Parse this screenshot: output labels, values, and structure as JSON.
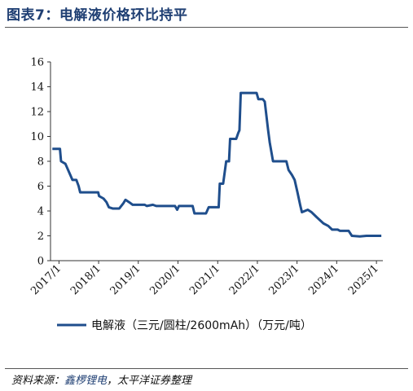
{
  "header": {
    "title": "图表7：电解液价格环比持平"
  },
  "footer": {
    "source_prefix": "资料来源：",
    "source_highlight": "鑫椤锂电",
    "source_rest": "，太平洋证券整理"
  },
  "colors": {
    "line": "#1f4e8c",
    "title": "#1f3f73"
  },
  "chart_data": {
    "type": "line",
    "title": "",
    "xlabel": "",
    "ylabel": "",
    "ylim": [
      0,
      16
    ],
    "yticks": [
      "0",
      "2",
      "4",
      "6",
      "8",
      "10",
      "12",
      "14",
      "16"
    ],
    "xlim": [
      "2016-10-15",
      "2025-03-01"
    ],
    "xticks": [
      {
        "label": "2017/1",
        "date": "2017-01-01"
      },
      {
        "label": "2018/1",
        "date": "2018-01-01"
      },
      {
        "label": "2019/1",
        "date": "2019-01-01"
      },
      {
        "label": "2020/1",
        "date": "2020-01-01"
      },
      {
        "label": "2021/1",
        "date": "2021-01-01"
      },
      {
        "label": "2022/1",
        "date": "2022-01-01"
      },
      {
        "label": "2023/1",
        "date": "2023-01-01"
      },
      {
        "label": "2024/1",
        "date": "2024-01-01"
      },
      {
        "label": "2025/1",
        "date": "2025-01-01"
      }
    ],
    "grid": false,
    "legend_position": "bottom",
    "series": [
      {
        "name": "电解液（三元/圆柱/2600mAh）（万元/吨）",
        "points": [
          [
            "2016-11-01",
            9.0
          ],
          [
            "2017-01-10",
            9.0
          ],
          [
            "2017-01-20",
            8.0
          ],
          [
            "2017-03-01",
            7.8
          ],
          [
            "2017-04-10",
            7.0
          ],
          [
            "2017-05-05",
            6.5
          ],
          [
            "2017-06-10",
            6.5
          ],
          [
            "2017-07-01",
            6.0
          ],
          [
            "2017-07-15",
            5.5
          ],
          [
            "2017-10-01",
            5.5
          ],
          [
            "2017-12-28",
            5.5
          ],
          [
            "2018-01-05",
            5.2
          ],
          [
            "2018-02-15",
            5.0
          ],
          [
            "2018-03-15",
            4.7
          ],
          [
            "2018-04-05",
            4.3
          ],
          [
            "2018-05-10",
            4.2
          ],
          [
            "2018-07-10",
            4.2
          ],
          [
            "2018-08-15",
            4.6
          ],
          [
            "2018-09-05",
            4.9
          ],
          [
            "2018-10-10",
            4.7
          ],
          [
            "2018-11-10",
            4.5
          ],
          [
            "2019-03-01",
            4.5
          ],
          [
            "2019-03-20",
            4.4
          ],
          [
            "2019-05-15",
            4.5
          ],
          [
            "2019-06-15",
            4.4
          ],
          [
            "2019-12-05",
            4.4
          ],
          [
            "2019-12-25",
            4.1
          ],
          [
            "2020-01-10",
            4.4
          ],
          [
            "2020-05-15",
            4.4
          ],
          [
            "2020-06-01",
            3.8
          ],
          [
            "2020-09-15",
            3.8
          ],
          [
            "2020-10-10",
            4.3
          ],
          [
            "2021-01-10",
            4.3
          ],
          [
            "2021-01-20",
            6.2
          ],
          [
            "2021-02-20",
            6.2
          ],
          [
            "2021-03-20",
            8.0
          ],
          [
            "2021-04-15",
            8.0
          ],
          [
            "2021-04-25",
            9.8
          ],
          [
            "2021-06-20",
            9.8
          ],
          [
            "2021-07-10",
            10.3
          ],
          [
            "2021-07-20",
            10.5
          ],
          [
            "2021-08-01",
            13.5
          ],
          [
            "2021-12-25",
            13.5
          ],
          [
            "2022-01-10",
            13.0
          ],
          [
            "2022-02-20",
            13.0
          ],
          [
            "2022-03-10",
            12.8
          ],
          [
            "2022-04-10",
            10.5
          ],
          [
            "2022-04-25",
            9.5
          ],
          [
            "2022-05-25",
            8.0
          ],
          [
            "2022-09-25",
            8.0
          ],
          [
            "2022-10-15",
            7.3
          ],
          [
            "2022-11-15",
            6.9
          ],
          [
            "2022-12-10",
            6.5
          ],
          [
            "2023-01-05",
            5.5
          ],
          [
            "2023-02-01",
            4.4
          ],
          [
            "2023-02-15",
            3.9
          ],
          [
            "2023-04-10",
            4.1
          ],
          [
            "2023-05-15",
            3.9
          ],
          [
            "2023-07-01",
            3.5
          ],
          [
            "2023-09-01",
            3.0
          ],
          [
            "2023-10-15",
            2.8
          ],
          [
            "2023-11-20",
            2.5
          ],
          [
            "2024-01-10",
            2.5
          ],
          [
            "2024-02-01",
            2.4
          ],
          [
            "2024-04-20",
            2.4
          ],
          [
            "2024-05-20",
            2.0
          ],
          [
            "2024-08-01",
            1.95
          ],
          [
            "2024-10-01",
            2.0
          ],
          [
            "2025-01-01",
            2.0
          ],
          [
            "2025-02-15",
            2.0
          ]
        ]
      }
    ]
  }
}
